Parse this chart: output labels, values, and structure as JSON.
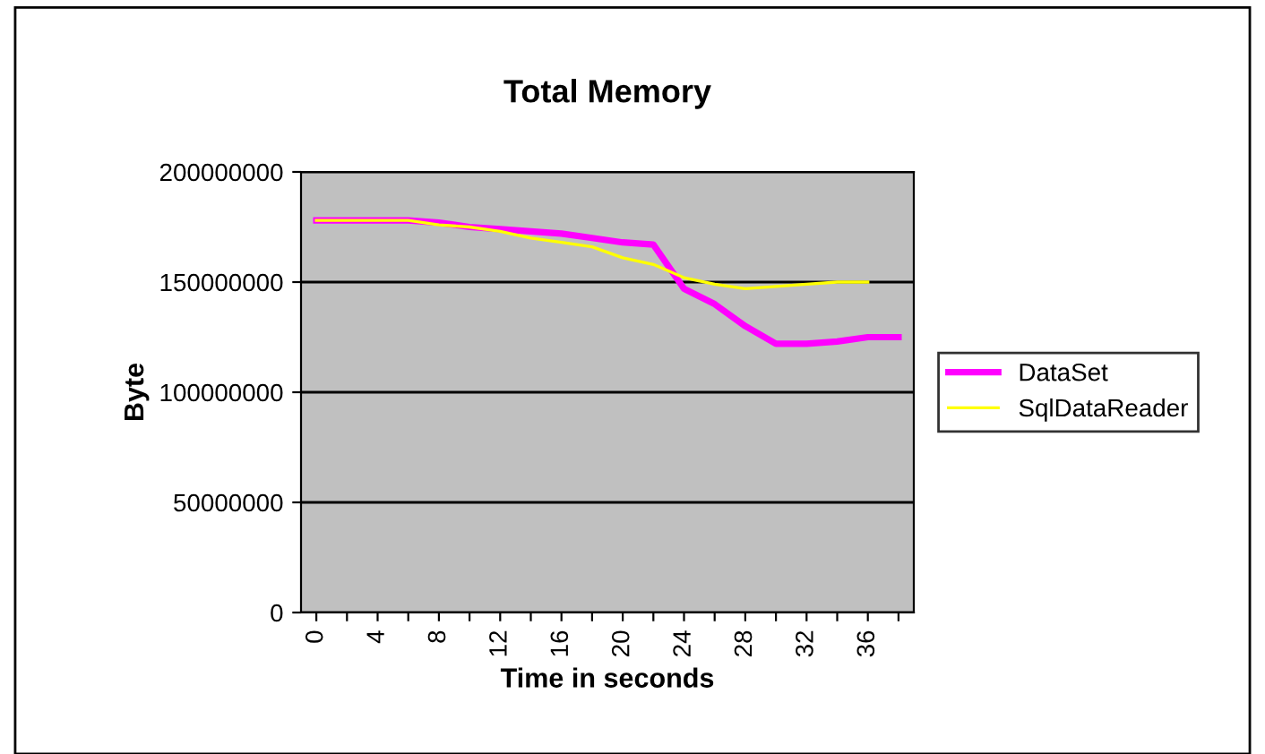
{
  "chart_data": {
    "type": "line",
    "title": "Total Memory",
    "xlabel": "Time in seconds",
    "ylabel": "Byte",
    "categories": [
      "0",
      null,
      "4",
      null,
      "8",
      null,
      "12",
      null,
      "16",
      null,
      "20",
      null,
      "24",
      null,
      "28",
      null,
      "32",
      null,
      "36",
      null
    ],
    "series": [
      {
        "name": "DataSet",
        "color": "#ff00ff",
        "values": [
          178000000,
          178000000,
          178000000,
          178000000,
          177000000,
          175000000,
          174000000,
          173000000,
          172000000,
          170000000,
          168000000,
          167000000,
          147000000,
          140000000,
          130000000,
          122000000,
          122000000,
          123000000,
          125000000,
          125000000
        ]
      },
      {
        "name": "SqlDataReader",
        "color": "#ffff00",
        "values": [
          178000000,
          178000000,
          178000000,
          178000000,
          176000000,
          175000000,
          173000000,
          170000000,
          168000000,
          166000000,
          161000000,
          158000000,
          152000000,
          149000000,
          147000000,
          148000000,
          149000000,
          150000000,
          150000000,
          null
        ]
      }
    ],
    "ylim": [
      0,
      200000000
    ],
    "yticks": [
      0,
      50000000,
      100000000,
      150000000,
      200000000
    ],
    "grid": "y",
    "legend": "right",
    "marker": "none",
    "line_style": "solid"
  }
}
